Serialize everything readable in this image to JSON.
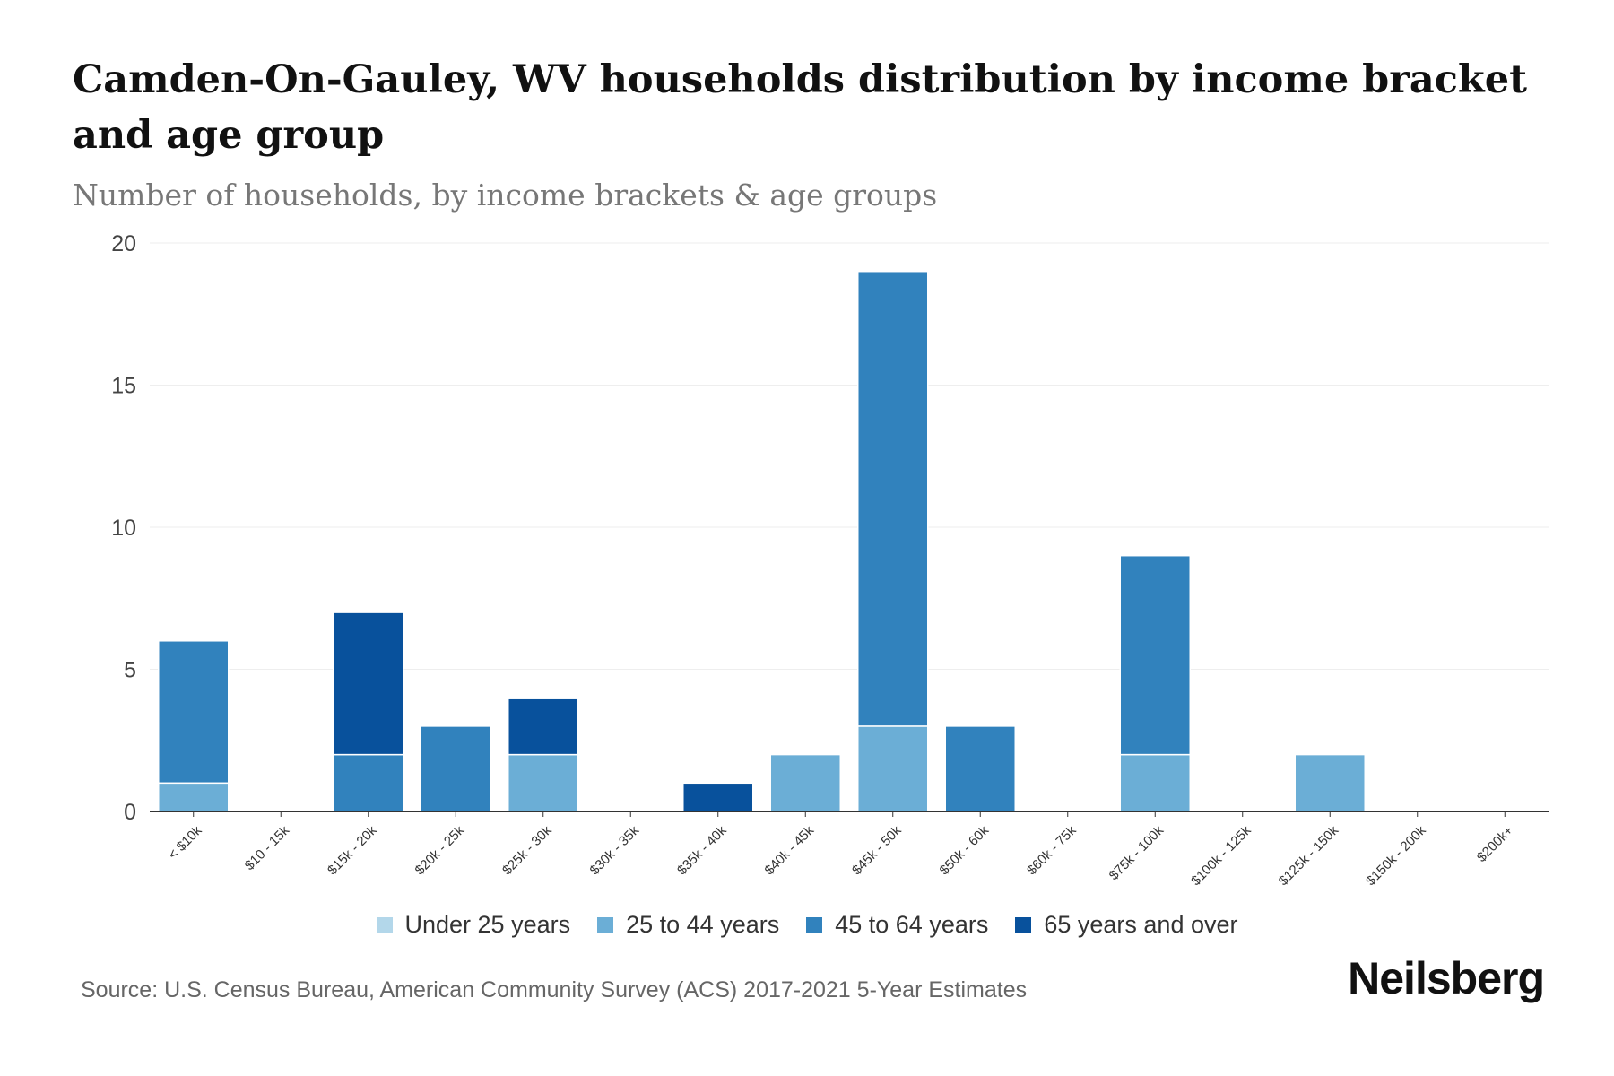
{
  "chart_data": {
    "type": "bar",
    "stacked": true,
    "title": "Camden-On-Gauley, WV households distribution by income bracket and age group",
    "subtitle": "Number of households, by income brackets & age groups",
    "xlabel": "",
    "ylabel": "",
    "ylim": [
      0,
      20
    ],
    "yticks": [
      0,
      5,
      10,
      15,
      20
    ],
    "grid": true,
    "legend_position": "bottom",
    "categories": [
      "< $10k",
      "$10 - 15k",
      "$15k - 20k",
      "$20k - 25k",
      "$25k - 30k",
      "$30k - 35k",
      "$35k - 40k",
      "$40k - 45k",
      "$45k - 50k",
      "$50k - 60k",
      "$60k - 75k",
      "$75k - 100k",
      "$100k - 125k",
      "$125k - 150k",
      "$150k - 200k",
      "$200k+"
    ],
    "series": [
      {
        "name": "Under 25 years",
        "color": "#b3d7ea",
        "values": [
          0,
          0,
          0,
          0,
          0,
          0,
          0,
          0,
          0,
          0,
          0,
          0,
          0,
          0,
          0,
          0
        ]
      },
      {
        "name": "25 to 44 years",
        "color": "#6baed6",
        "values": [
          1,
          0,
          0,
          0,
          2,
          0,
          0,
          2,
          3,
          0,
          0,
          2,
          0,
          2,
          0,
          0
        ]
      },
      {
        "name": "45 to 64 years",
        "color": "#3182bd",
        "values": [
          5,
          0,
          2,
          3,
          0,
          0,
          0,
          0,
          16,
          3,
          0,
          7,
          0,
          0,
          0,
          0
        ]
      },
      {
        "name": "65 years and over",
        "color": "#08519c",
        "values": [
          0,
          0,
          5,
          0,
          2,
          0,
          1,
          0,
          0,
          0,
          0,
          0,
          0,
          0,
          0,
          0
        ]
      }
    ]
  },
  "source": "Source: U.S. Census Bureau, American Community Survey (ACS) 2017-2021 5-Year Estimates",
  "brand": "Neilsberg"
}
